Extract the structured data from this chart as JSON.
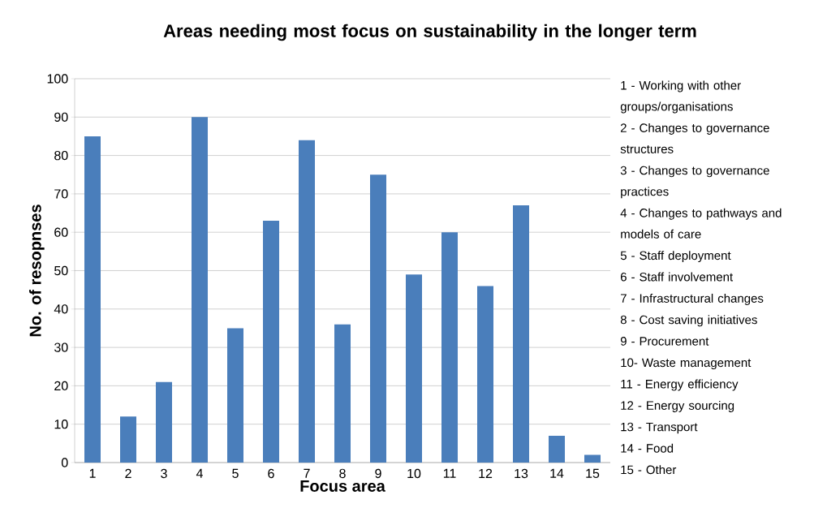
{
  "chart_data": {
    "type": "bar",
    "title": "Areas needing most focus on sustainability in the longer term",
    "xlabel": "Focus area",
    "ylabel": "No. of resopnses",
    "categories": [
      "1",
      "2",
      "3",
      "4",
      "5",
      "6",
      "7",
      "8",
      "9",
      "10",
      "11",
      "12",
      "13",
      "14",
      "15"
    ],
    "values": [
      85,
      12,
      21,
      90,
      35,
      63,
      84,
      36,
      75,
      49,
      60,
      46,
      67,
      7,
      2
    ],
    "color": "#4a7ebb",
    "ylim": [
      0,
      100
    ],
    "yticks": [
      0,
      10,
      20,
      30,
      40,
      50,
      60,
      70,
      80,
      90,
      100
    ],
    "grid": "y",
    "annotations": [
      "1 - Working with other groups/organisations",
      "2 - Changes to governance structures",
      "3 - Changes to governance practices",
      "4 - Changes to pathways and models of care",
      "5 - Staff deployment",
      "6 - Staff involvement",
      "7 - Infrastructural changes",
      "8 - Cost saving initiatives",
      "9 - Procurement",
      "10- Waste management",
      "11 - Energy efficiency",
      "12 - Energy sourcing",
      "13 - Transport",
      "14 - Food",
      "15 - Other"
    ]
  }
}
